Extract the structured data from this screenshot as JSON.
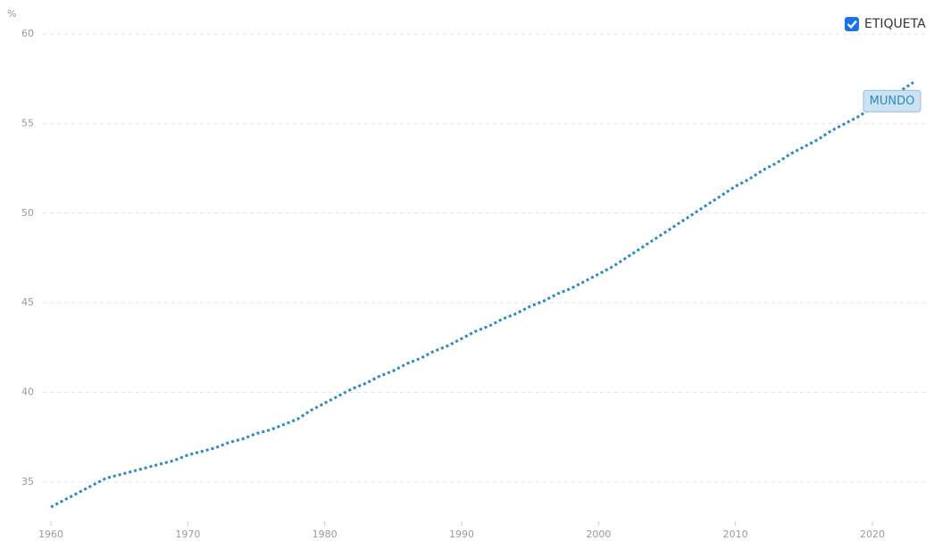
{
  "chart_data": {
    "type": "line",
    "y_unit": "%",
    "legend_label": "ETIQUETA",
    "x": [
      1960,
      1961,
      1962,
      1963,
      1964,
      1965,
      1966,
      1967,
      1968,
      1969,
      1970,
      1971,
      1972,
      1973,
      1974,
      1975,
      1976,
      1977,
      1978,
      1979,
      1980,
      1981,
      1982,
      1983,
      1984,
      1985,
      1986,
      1987,
      1988,
      1989,
      1990,
      1991,
      1992,
      1993,
      1994,
      1995,
      1996,
      1997,
      1998,
      1999,
      2000,
      2001,
      2002,
      2003,
      2004,
      2005,
      2006,
      2007,
      2008,
      2009,
      2010,
      2011,
      2012,
      2013,
      2014,
      2015,
      2016,
      2017,
      2018,
      2019,
      2020,
      2021,
      2022,
      2023
    ],
    "series": [
      {
        "name": "MUNDO",
        "color": "#2a8ac4",
        "values": [
          33.6,
          34.0,
          34.4,
          34.8,
          35.2,
          35.4,
          35.6,
          35.8,
          36.0,
          36.2,
          36.5,
          36.7,
          36.9,
          37.2,
          37.4,
          37.7,
          37.9,
          38.2,
          38.5,
          39.0,
          39.4,
          39.8,
          40.2,
          40.5,
          40.9,
          41.2,
          41.6,
          41.9,
          42.3,
          42.6,
          43.0,
          43.4,
          43.7,
          44.1,
          44.4,
          44.8,
          45.1,
          45.5,
          45.8,
          46.2,
          46.6,
          47.0,
          47.5,
          48.0,
          48.5,
          49.0,
          49.5,
          50.0,
          50.5,
          51.0,
          51.5,
          51.9,
          52.4,
          52.8,
          53.3,
          53.7,
          54.1,
          54.6,
          55.0,
          55.4,
          55.9,
          56.3,
          56.8,
          57.3
        ]
      }
    ],
    "xlim": [
      1960,
      2023
    ],
    "xticks": [
      1960,
      1970,
      1980,
      1990,
      2000,
      2010,
      2020
    ],
    "ylim": [
      32.8,
      60.9
    ],
    "yticks": [
      35,
      40,
      45,
      50,
      55,
      60
    ],
    "grid": true
  }
}
